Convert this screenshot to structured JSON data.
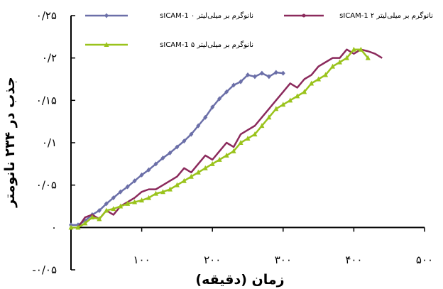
{
  "chart_data": {
    "type": "line",
    "xlabel": "زمان (دقیقه)",
    "ylabel": "جذب در ۲۳۴ نانومتر",
    "xlim": [
      0,
      500
    ],
    "ylim": [
      -0.05,
      0.25
    ],
    "x_ticks": [
      {
        "value": 100,
        "label": "۱۰۰"
      },
      {
        "value": 200,
        "label": "۲۰۰"
      },
      {
        "value": 300,
        "label": "۳۰۰"
      },
      {
        "value": 400,
        "label": "۴۰۰"
      },
      {
        "value": 500,
        "label": "۵۰۰"
      }
    ],
    "y_ticks": [
      {
        "value": -0.05,
        "label": "-۰/۰۵"
      },
      {
        "value": 0,
        "label": "۰"
      },
      {
        "value": 0.05,
        "label": "۰/۰۵"
      },
      {
        "value": 0.1,
        "label": "۰/۱"
      },
      {
        "value": 0.15,
        "label": "۰/۱۵"
      },
      {
        "value": 0.2,
        "label": "۰/۲"
      },
      {
        "value": 0.25,
        "label": "۰/۲۵"
      }
    ],
    "grid": false,
    "legend_position": "top",
    "series": [
      {
        "name": "sICAM-1 ۰ نانوگرم بر میلی‌لیتر",
        "color": "#6b6fa8",
        "marker": "diamond",
        "x": [
          0,
          10,
          20,
          30,
          40,
          50,
          60,
          70,
          80,
          90,
          100,
          110,
          120,
          130,
          140,
          150,
          160,
          170,
          180,
          190,
          200,
          210,
          220,
          230,
          240,
          250,
          260,
          270,
          280,
          290,
          300
        ],
        "y": [
          0.003,
          0.003,
          0.008,
          0.015,
          0.02,
          0.028,
          0.035,
          0.042,
          0.048,
          0.055,
          0.062,
          0.068,
          0.075,
          0.082,
          0.088,
          0.095,
          0.102,
          0.11,
          0.12,
          0.13,
          0.142,
          0.152,
          0.16,
          0.168,
          0.172,
          0.18,
          0.178,
          0.182,
          0.178,
          0.183,
          0.182
        ]
      },
      {
        "name": "sICAM-1 ۲ نانوگرم بر میلی‌لیتر",
        "color": "#8b2a5c",
        "marker": "none",
        "x": [
          0,
          10,
          20,
          30,
          40,
          50,
          60,
          70,
          80,
          90,
          100,
          110,
          120,
          130,
          140,
          150,
          160,
          170,
          180,
          190,
          200,
          210,
          220,
          230,
          240,
          250,
          260,
          270,
          280,
          290,
          300,
          310,
          320,
          330,
          340,
          350,
          360,
          370,
          380,
          390,
          400,
          410,
          420,
          430,
          440
        ],
        "y": [
          0.0,
          0.0,
          0.012,
          0.015,
          0.01,
          0.02,
          0.015,
          0.025,
          0.03,
          0.035,
          0.042,
          0.045,
          0.045,
          0.05,
          0.055,
          0.06,
          0.07,
          0.065,
          0.075,
          0.085,
          0.08,
          0.09,
          0.1,
          0.095,
          0.11,
          0.115,
          0.12,
          0.13,
          0.14,
          0.15,
          0.16,
          0.17,
          0.165,
          0.175,
          0.18,
          0.19,
          0.195,
          0.2,
          0.2,
          0.21,
          0.205,
          0.21,
          0.208,
          0.205,
          0.2
        ]
      },
      {
        "name": "sICAM-1 ۵ نانوگرم بر میلی‌لیتر",
        "color": "#9ac31c",
        "marker": "triangle",
        "x": [
          0,
          10,
          20,
          30,
          40,
          50,
          60,
          70,
          80,
          90,
          100,
          110,
          120,
          130,
          140,
          150,
          160,
          170,
          180,
          190,
          200,
          210,
          220,
          230,
          240,
          250,
          260,
          270,
          280,
          290,
          300,
          310,
          320,
          330,
          340,
          350,
          360,
          370,
          380,
          390,
          400,
          410,
          420
        ],
        "y": [
          0.0,
          0.0,
          0.005,
          0.012,
          0.01,
          0.02,
          0.022,
          0.025,
          0.028,
          0.03,
          0.032,
          0.035,
          0.04,
          0.042,
          0.045,
          0.05,
          0.055,
          0.06,
          0.065,
          0.07,
          0.075,
          0.08,
          0.085,
          0.09,
          0.1,
          0.105,
          0.11,
          0.12,
          0.13,
          0.14,
          0.145,
          0.15,
          0.155,
          0.16,
          0.17,
          0.175,
          0.18,
          0.19,
          0.195,
          0.2,
          0.21,
          0.21,
          0.2
        ]
      }
    ]
  }
}
